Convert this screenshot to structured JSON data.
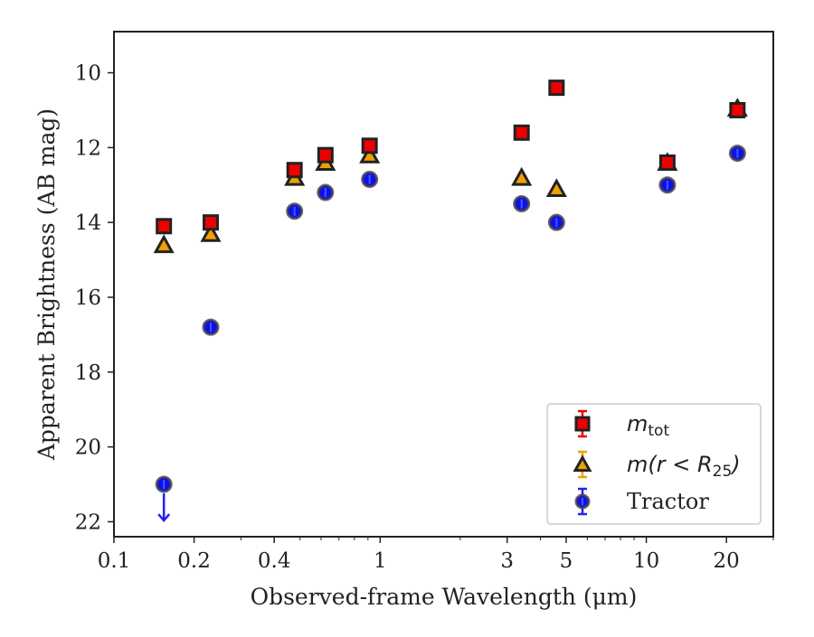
{
  "chart_data": {
    "type": "scatter",
    "xlabel": "Observed-frame Wavelength (μm)",
    "ylabel": "Apparent Brightness (AB mag)",
    "xscale": "log",
    "xlim": [
      0.1,
      30
    ],
    "ylim": [
      22.4,
      8.9
    ],
    "y_inverted": true,
    "grid": false,
    "legend_position": "lower-right",
    "x_ticks": [
      {
        "value": 0.1,
        "label": "0.1"
      },
      {
        "value": 0.2,
        "label": "0.2"
      },
      {
        "value": 0.4,
        "label": "0.4"
      },
      {
        "value": 1,
        "label": "1"
      },
      {
        "value": 3,
        "label": "3"
      },
      {
        "value": 5,
        "label": "5"
      },
      {
        "value": 10,
        "label": "10"
      },
      {
        "value": 20,
        "label": "20"
      }
    ],
    "y_ticks": [
      {
        "value": 10,
        "label": "10"
      },
      {
        "value": 12,
        "label": "12"
      },
      {
        "value": 14,
        "label": "14"
      },
      {
        "value": 16,
        "label": "16"
      },
      {
        "value": 18,
        "label": "18"
      },
      {
        "value": 20,
        "label": "20"
      },
      {
        "value": 22,
        "label": "22"
      }
    ],
    "series": [
      {
        "name": "m_tot",
        "legend_label": {
          "base": "m",
          "sub": "tot"
        },
        "marker": "square",
        "color": "#ee0000",
        "edge_color": "#222222",
        "x": [
          0.154,
          0.231,
          0.477,
          0.623,
          0.913,
          3.4,
          4.6,
          12.0,
          22.0
        ],
        "y": [
          14.1,
          14.0,
          12.6,
          12.2,
          11.95,
          11.6,
          10.4,
          12.4,
          11.0
        ]
      },
      {
        "name": "m(r < R25)",
        "legend_label": {
          "text": "m(r < R",
          "sub": "25",
          "close": ")"
        },
        "marker": "triangle",
        "color": "#f0a000",
        "edge_color": "#222222",
        "x": [
          0.154,
          0.231,
          0.477,
          0.623,
          0.913,
          3.4,
          4.6,
          12.0,
          22.0
        ],
        "y": [
          14.6,
          14.3,
          12.8,
          12.4,
          12.2,
          12.8,
          13.1,
          12.4,
          10.95
        ]
      },
      {
        "name": "Tractor",
        "legend_label": {
          "text": "Tractor"
        },
        "marker": "circle",
        "color": "#1010ee",
        "edge_color": "#444444",
        "x": [
          0.154,
          0.231,
          0.477,
          0.623,
          0.913,
          3.4,
          4.6,
          12.0,
          22.0
        ],
        "y": [
          21.0,
          16.8,
          13.7,
          13.2,
          12.85,
          13.5,
          14.0,
          13.0,
          12.15
        ],
        "upper_limit_index": 0
      }
    ]
  }
}
